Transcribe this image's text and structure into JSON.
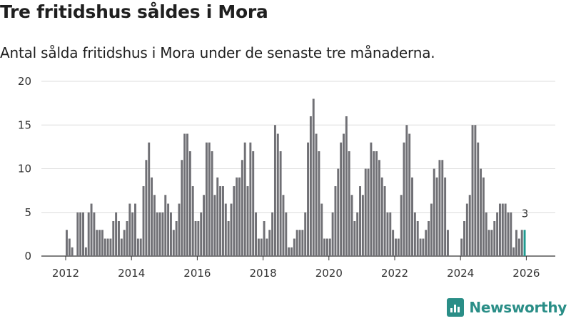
{
  "header": {
    "title": "Tre fritidshus såldes i Mora",
    "subtitle": "Antal sålda fritidshus i Mora under de senaste tre månaderna."
  },
  "brand": {
    "name": "Newsworthy",
    "color": "#2a8e87"
  },
  "colors": {
    "bar": "#707075",
    "highlight": "#1f9a8f"
  },
  "chart_data": {
    "type": "bar",
    "title": "",
    "xlabel": "",
    "ylabel": "",
    "ylim": [
      0,
      20
    ],
    "yticks": [
      0,
      5,
      10,
      15,
      20
    ],
    "xticks": [
      "2012",
      "2014",
      "2016",
      "2018",
      "2020",
      "2022",
      "2024",
      "2026"
    ],
    "grid": true,
    "start": {
      "year": 2012,
      "month": 1
    },
    "values": [
      3,
      2,
      1,
      0,
      5,
      5,
      5,
      1,
      5,
      6,
      5,
      3,
      3,
      3,
      2,
      2,
      2,
      4,
      5,
      4,
      2,
      3,
      4,
      6,
      5,
      6,
      2,
      2,
      8,
      11,
      13,
      9,
      7,
      5,
      5,
      5,
      7,
      6,
      5,
      3,
      4,
      6,
      11,
      14,
      14,
      12,
      8,
      4,
      4,
      5,
      7,
      13,
      13,
      12,
      7,
      9,
      8,
      8,
      6,
      4,
      6,
      8,
      9,
      9,
      11,
      13,
      8,
      13,
      12,
      5,
      2,
      2,
      4,
      2,
      3,
      5,
      15,
      14,
      12,
      7,
      5,
      1,
      1,
      2,
      3,
      3,
      3,
      5,
      13,
      16,
      18,
      14,
      12,
      6,
      2,
      2,
      2,
      5,
      8,
      10,
      13,
      14,
      16,
      12,
      7,
      4,
      5,
      8,
      7,
      10,
      10,
      13,
      12,
      12,
      11,
      9,
      8,
      5,
      5,
      3,
      2,
      2,
      7,
      13,
      15,
      14,
      9,
      5,
      4,
      2,
      2,
      3,
      4,
      6,
      10,
      9,
      11,
      11,
      9,
      3,
      0,
      0,
      0,
      0,
      2,
      4,
      6,
      7,
      15,
      15,
      13,
      10,
      9,
      5,
      3,
      3,
      4,
      5,
      6,
      6,
      6,
      5,
      5,
      1,
      3,
      2,
      3,
      3
    ],
    "highlight_last": 1,
    "annotations": [
      {
        "label": "3",
        "target": "last"
      }
    ]
  }
}
